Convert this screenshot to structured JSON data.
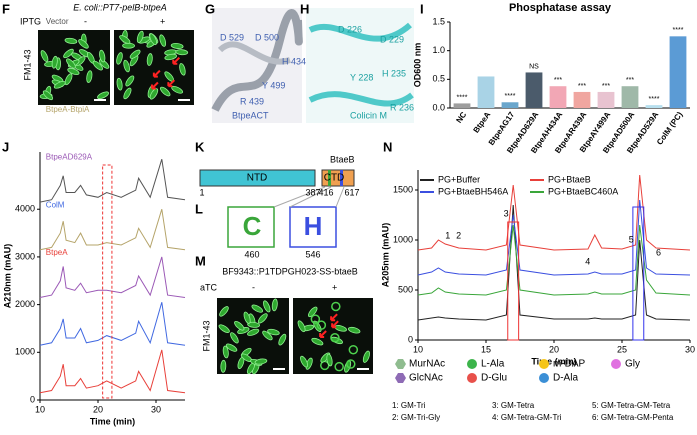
{
  "panel_labels": [
    "F",
    "G",
    "H",
    "I",
    "J",
    "K",
    "L",
    "M",
    "N"
  ],
  "F": {
    "title": "E. coli::PT7-pelB-btpeA",
    "row": "IPTG",
    "minus": "-",
    "plus": "+",
    "stain": "FM1-43"
  },
  "G": {
    "labels": [
      "D 529",
      "D 500",
      "H 434",
      "Y 499",
      "R 439",
      "BtpeACT"
    ]
  },
  "H": {
    "labels": [
      "D 226",
      "D 229",
      "Y 228",
      "H 235",
      "R 236",
      "Colicin M"
    ]
  },
  "K": {
    "title": "BtaeB",
    "domains": [
      "NTD",
      "CTD"
    ],
    "positions": [
      "1",
      "387",
      "416",
      "617"
    ]
  },
  "L": {
    "positions": [
      "460",
      "546"
    ]
  },
  "M": {
    "title": "BF9343::P1TDPGH023-SS-btaeB",
    "row": "aTC",
    "minus": "-",
    "plus": "+",
    "stain": "FM1-43"
  },
  "N_extra": {
    "peaks": [
      "1",
      "2",
      "3",
      "4",
      "5",
      "6"
    ],
    "legend": [
      {
        "label": "MurNAc",
        "color": "#8fbc8f"
      },
      {
        "label": "L-Ala",
        "color": "#3cb44b"
      },
      {
        "label": "m-DAP",
        "color": "#f5c518"
      },
      {
        "label": "Gly",
        "color": "#e070e0"
      },
      {
        "label": "GlcNAc",
        "color": "#8e6bb5"
      },
      {
        "label": "D-Glu",
        "color": "#e8504a"
      },
      {
        "label": "D-Ala",
        "color": "#3b8fd6"
      }
    ],
    "products": [
      "1: GM-Tri",
      "3: GM-Tetra",
      "5: GM-Tetra-GM-Tetra",
      "2: GM-Tri-Gly",
      "4: GM-Tetra-GM-Tri",
      "6: GM-Tetra-GM-Penta"
    ]
  },
  "chart_data": [
    {
      "type": "bar",
      "title": "Phosphatase assay",
      "y_label": "OD600 nm",
      "categories": [
        "NC",
        "BtpeA",
        "BtpeAG17",
        "BtpeAD629A",
        "BtpeAH434A",
        "BtpeAR439A",
        "BtpeAY499A",
        "BtpeAD500A",
        "BtpeAD529A",
        "ColM (PC)"
      ],
      "values": [
        0.08,
        0.55,
        0.1,
        0.62,
        0.38,
        0.28,
        0.28,
        0.38,
        0.05,
        1.25
      ],
      "colors": [
        "#9e9e9e",
        "#a9d3e6",
        "#6aa6cc",
        "#4b5b6b",
        "#f2a7b5",
        "#f0a6a0",
        "#e8c3d0",
        "#9fb8a8",
        "#b7dfee",
        "#5b9bd5"
      ],
      "annotations": [
        "****",
        "",
        "****",
        "NS",
        "***",
        "***",
        "***",
        "***",
        "****",
        "****"
      ],
      "ylim": [
        0,
        1.5
      ],
      "yticks": [
        {
          "value": 0,
          "label": "0.0"
        },
        {
          "value": 0.5,
          "label": "0.5"
        },
        {
          "value": 1,
          "label": "1.0"
        },
        {
          "value": 1.5,
          "label": "1.5"
        }
      ]
    },
    {
      "type": "line",
      "y_label": "A210nm (mAU)",
      "x_label": "Time (min)",
      "x": [
        10,
        12,
        13.5,
        14,
        14.5,
        16,
        17,
        18,
        20,
        21.5,
        24,
        26.5,
        27,
        29,
        31,
        32,
        35
      ],
      "series": [
        {
          "name": "Vector",
          "color": "#555555",
          "values": [
            4150,
            4200,
            4500,
            4700,
            4350,
            4350,
            4500,
            4300,
            4250,
            4350,
            4250,
            4400,
            4650,
            4250,
            5050,
            4250,
            4200
          ]
        },
        {
          "name": "BtpeA-BtpiA",
          "color": "#b5a46a",
          "values": [
            3150,
            3200,
            3500,
            3750,
            3350,
            3300,
            3500,
            3250,
            3250,
            3300,
            3250,
            3400,
            3600,
            3200,
            4000,
            3200,
            3150
          ]
        },
        {
          "name": "BtpeAD629A",
          "color": "#9b59b6",
          "values": [
            2150,
            2200,
            2500,
            2800,
            2350,
            2300,
            2450,
            2250,
            2300,
            2300,
            2250,
            2400,
            2600,
            2200,
            3000,
            2200,
            2150
          ]
        },
        {
          "name": "ColM",
          "color": "#4169e1",
          "values": [
            1150,
            1200,
            1500,
            1700,
            1300,
            1300,
            1500,
            1200,
            1250,
            1350,
            1250,
            1400,
            1650,
            1200,
            2050,
            1200,
            1150
          ]
        },
        {
          "name": "BtpeA",
          "color": "#e8403a",
          "values": [
            150,
            200,
            500,
            750,
            300,
            300,
            450,
            250,
            300,
            400,
            250,
            400,
            600,
            200,
            1050,
            200,
            150
          ]
        }
      ],
      "xlim": [
        10,
        35
      ],
      "xticks": [
        10,
        20,
        30
      ],
      "ylim": [
        0,
        5200
      ],
      "yticks": [
        0,
        1000,
        2000,
        3000,
        4000
      ]
    },
    {
      "type": "line",
      "y_label": "A205nm (mAU)",
      "x_label": "Time (min)",
      "x": [
        10,
        11,
        11.5,
        12,
        13,
        15,
        16.5,
        17,
        17.5,
        20,
        22.5,
        23,
        23.5,
        25,
        26,
        26.3,
        26.8,
        27.5,
        30
      ],
      "series": [
        {
          "name": "PG+Buffer",
          "color": "#222222",
          "values": [
            200,
            220,
            230,
            220,
            210,
            200,
            250,
            1350,
            250,
            210,
            210,
            220,
            210,
            210,
            250,
            1000,
            250,
            210,
            200
          ]
        },
        {
          "name": "PG+BtaeB",
          "color": "#e8403a",
          "values": [
            900,
            920,
            1000,
            960,
            920,
            900,
            950,
            1550,
            950,
            900,
            910,
            1050,
            920,
            910,
            950,
            1650,
            1000,
            920,
            900
          ]
        },
        {
          "name": "PG+BtaeBH546A",
          "color": "#3b4fe0",
          "values": [
            650,
            680,
            720,
            680,
            660,
            650,
            700,
            1250,
            700,
            650,
            660,
            680,
            660,
            660,
            700,
            1400,
            720,
            660,
            650
          ]
        },
        {
          "name": "PG+BtaeBC460A",
          "color": "#3aa63a",
          "values": [
            450,
            470,
            520,
            480,
            460,
            450,
            500,
            1150,
            500,
            450,
            460,
            480,
            460,
            460,
            500,
            1150,
            600,
            470,
            450
          ]
        }
      ],
      "xlim": [
        10,
        30
      ],
      "xticks": [
        10,
        15,
        20,
        25,
        30
      ],
      "ylim": [
        0,
        1700
      ],
      "yticks": [
        0,
        500,
        1000,
        1500
      ]
    }
  ]
}
